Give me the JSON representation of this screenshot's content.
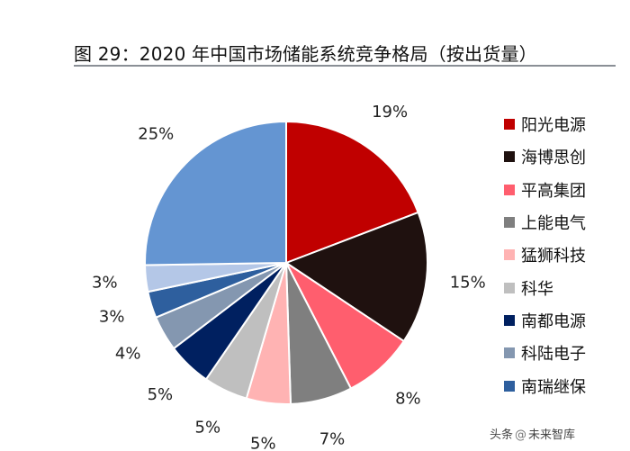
{
  "header": {
    "title": "图 29：2020 年中国市场储能系统竞争格局（按出货量）"
  },
  "chart_data": {
    "type": "pie",
    "title": "图 29：2020 年中国市场储能系统竞争格局（按出货量）",
    "start": "12 o'clock, clockwise",
    "series": [
      {
        "name": "阳光电源",
        "value": 19,
        "label": "19%",
        "color": "#C00000"
      },
      {
        "name": "海博思创",
        "value": 15,
        "label": "15%",
        "color": "#1F110F"
      },
      {
        "name": "平高集团",
        "value": 8,
        "label": "8%",
        "color": "#FF5E6E"
      },
      {
        "name": "上能电气",
        "value": 7,
        "label": "7%",
        "color": "#7F7F7F"
      },
      {
        "name": "猛狮科技",
        "value": 5,
        "label": "5%",
        "color": "#FFB3B3"
      },
      {
        "name": "科华",
        "value": 5,
        "label": "5%",
        "color": "#BFBFBF"
      },
      {
        "name": "南都电源",
        "value": 5,
        "label": "5%",
        "color": "#002060"
      },
      {
        "name": "科陆电子",
        "value": 4,
        "label": "4%",
        "color": "#8497B0"
      },
      {
        "name": "南瑞继保",
        "value": 3,
        "label": "3%",
        "color": "#2E5F9E"
      },
      {
        "name": "",
        "value": 3,
        "label": "3%",
        "color": "#B4C7E7"
      },
      {
        "name": "",
        "value": 25,
        "label": "25%",
        "color": "#6495D2"
      }
    ],
    "legend": {
      "position": "right",
      "items": [
        "阳光电源",
        "海博思创",
        "平高集团",
        "上能电气",
        "猛狮科技",
        "科华",
        "南都电源",
        "科陆电子",
        "南瑞继保"
      ]
    }
  },
  "watermark": {
    "prefix": "头条",
    "at": "@",
    "name": "未来智库"
  }
}
